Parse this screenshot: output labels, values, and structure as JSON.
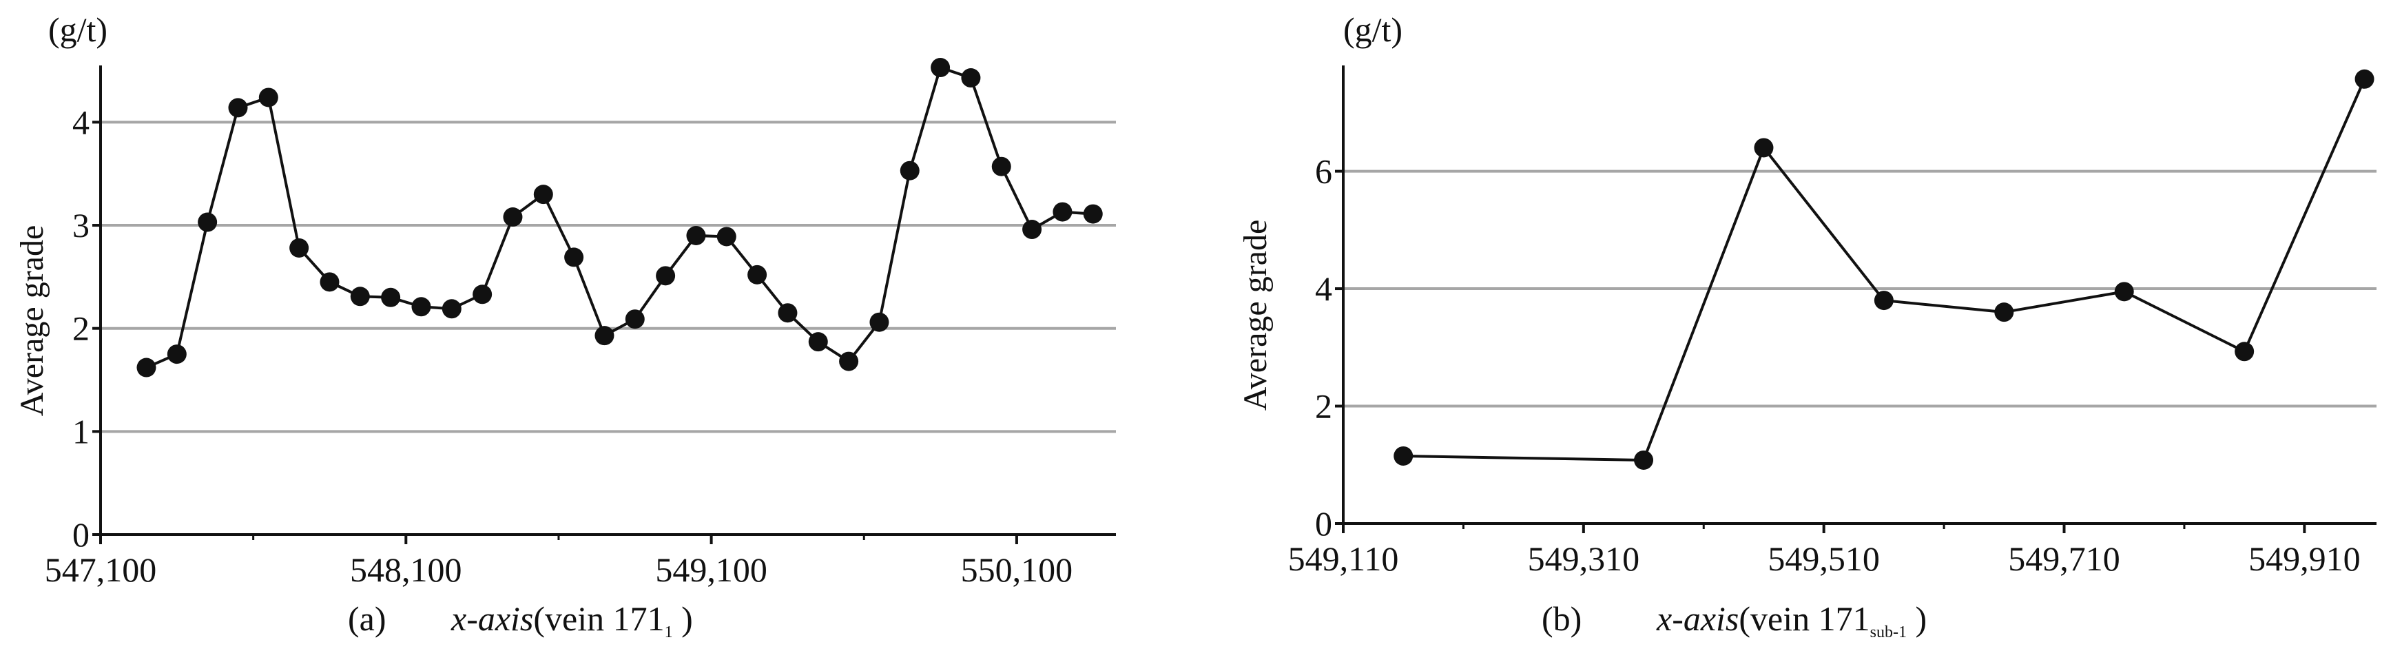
{
  "chart_data": [
    {
      "type": "line",
      "panel_label": "(a)",
      "caption_axis": "x-axis",
      "caption_vein_prefix": "(vein 171",
      "caption_vein_sub": "1",
      "caption_vein_suffix": " )",
      "unit": "(g/t)",
      "ylabel": "Average grade",
      "xlim": [
        547100,
        550425
      ],
      "ylim": [
        0,
        4.4
      ],
      "x_ticks": [
        547100,
        548100,
        549100,
        550100
      ],
      "x_tick_labels": [
        "547,100",
        "548,100",
        "549,100",
        "550,100"
      ],
      "y_ticks": [
        0,
        1,
        2,
        3,
        4
      ],
      "y_tick_labels": [
        "0",
        "1",
        "2",
        "3",
        "4"
      ],
      "grid": "horizontal",
      "x": [
        547250,
        547350,
        547450,
        547550,
        547650,
        547750,
        547850,
        547950,
        548050,
        548150,
        548250,
        548350,
        548450,
        548550,
        548650,
        548750,
        548850,
        548950,
        549050,
        549150,
        549250,
        549350,
        549450,
        549550,
        549650,
        549750,
        549850,
        549950,
        550050,
        550150,
        550250,
        550350
      ],
      "values": [
        1.62,
        1.75,
        3.03,
        4.14,
        4.24,
        2.78,
        2.45,
        2.31,
        2.3,
        2.21,
        2.19,
        2.33,
        3.08,
        3.3,
        2.69,
        1.93,
        2.09,
        2.51,
        2.9,
        2.89,
        2.52,
        2.15,
        1.87,
        1.68,
        2.06,
        3.53,
        4.53,
        4.43,
        3.57,
        2.96,
        3.13,
        3.11
      ]
    },
    {
      "type": "line",
      "panel_label": "(b)",
      "caption_axis": "x-axis",
      "caption_vein_prefix": "(vein 171",
      "caption_vein_sub": "sub-1",
      "caption_vein_suffix": " )",
      "unit": "(g/t)",
      "ylabel": "Average grade",
      "xlim": [
        549110,
        950060
      ],
      "xlim_note": "",
      "x_domain": [
        549110,
        950070
      ],
      "ylim": [
        0,
        7.5
      ],
      "x_ticks": [
        549110,
        549310,
        549510,
        549710,
        549910
      ],
      "x_tick_labels": [
        "549,110",
        "549,310",
        "549,510",
        "549,710",
        "549,910"
      ],
      "y_ticks": [
        0,
        2,
        4,
        6
      ],
      "y_tick_labels": [
        "0",
        "2",
        "4",
        "6"
      ],
      "grid": "horizontal",
      "x": [
        549160,
        549360,
        549460,
        549560,
        549660,
        549760,
        549860,
        549960
      ],
      "values": [
        1.15,
        1.08,
        6.4,
        3.8,
        3.6,
        3.95,
        2.93,
        7.57
      ]
    }
  ],
  "colors": {
    "line": "#111111",
    "marker": "#111111",
    "grid": "#a6a6a6",
    "axis": "#111111"
  }
}
